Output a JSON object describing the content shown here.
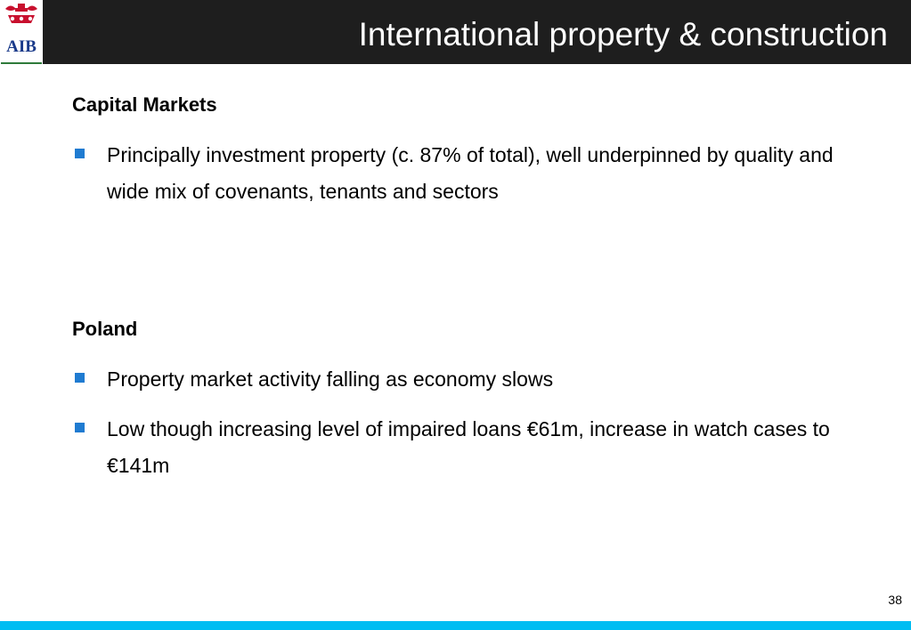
{
  "brand": {
    "logo_text": "AIB",
    "accent": "#c8102e",
    "logo_green": "#2e7a3a"
  },
  "header": {
    "title": "International property & construction",
    "background": "#1e1e1e"
  },
  "sections": [
    {
      "heading": "Capital Markets",
      "bullets": [
        "Principally investment property (c. 87% of total), well underpinned by quality and wide mix of covenants, tenants and sectors"
      ]
    },
    {
      "heading": "Poland",
      "bullets": [
        "Property market activity falling as economy slows",
        "Low though increasing level of impaired loans €61m, increase in watch cases to €141m"
      ]
    }
  ],
  "bullet_color": "#1f7bd1",
  "page_number": "38",
  "footer_color": "#00bdf2"
}
